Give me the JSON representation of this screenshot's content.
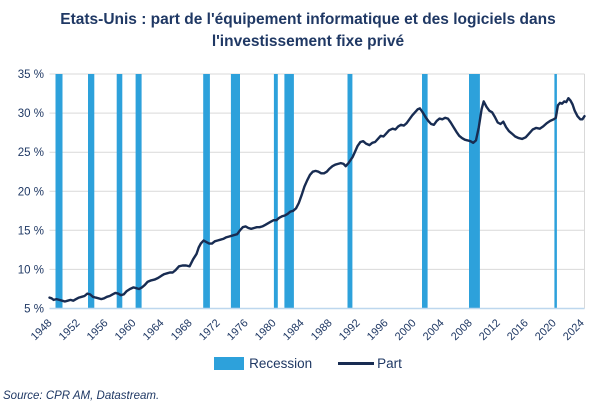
{
  "title": "Etats-Unis : part de l'équipement informatique et des logiciels dans l'investissement fixe privé",
  "legend": {
    "recession": "Recession",
    "part": "Part"
  },
  "source": "Source: CPR AM, Datastream.",
  "chart_data": {
    "type": "line",
    "title": "Etats-Unis : part de l'équipement informatique et des logiciels dans l'investissement fixe privé",
    "xlabel": "",
    "ylabel": "",
    "xlim": [
      1948,
      2024.4
    ],
    "ylim": [
      5,
      35
    ],
    "grid": "horizontal",
    "legend_position": "bottom",
    "xticks": [
      1948,
      1952,
      1956,
      1960,
      1964,
      1968,
      1972,
      1976,
      1980,
      1984,
      1988,
      1992,
      1996,
      2000,
      2004,
      2008,
      2012,
      2016,
      2020,
      2024
    ],
    "yticks": [
      5,
      10,
      15,
      20,
      25,
      30,
      35
    ],
    "ytick_labels": [
      "5 %",
      "10 %",
      "15 %",
      "20 %",
      "25 %",
      "30 %",
      "35 %"
    ],
    "colors": {
      "recession": "#2DA1DB",
      "part": "#182C52",
      "grid": "#D9D9D9",
      "baseline": "#BDD7EE",
      "text": "#1F3864"
    },
    "recessions": [
      [
        1948.85,
        1949.85
      ],
      [
        1953.5,
        1954.4
      ],
      [
        1957.6,
        1958.4
      ],
      [
        1960.3,
        1961.15
      ],
      [
        1969.95,
        1970.9
      ],
      [
        1973.9,
        1975.2
      ],
      [
        1980.05,
        1980.6
      ],
      [
        1981.55,
        1982.9
      ],
      [
        1990.55,
        1991.25
      ],
      [
        2001.2,
        2002.0
      ],
      [
        2007.9,
        2009.45
      ],
      [
        2020.1,
        2020.45
      ]
    ],
    "series": [
      {
        "name": "Part",
        "points": [
          [
            1948.0,
            6.4
          ],
          [
            1948.3,
            6.3
          ],
          [
            1948.6,
            6.1
          ],
          [
            1949.0,
            6.2
          ],
          [
            1949.4,
            6.1
          ],
          [
            1949.8,
            6.0
          ],
          [
            1950.2,
            5.9
          ],
          [
            1950.6,
            6.0
          ],
          [
            1951.0,
            6.1
          ],
          [
            1951.4,
            6.0
          ],
          [
            1951.8,
            6.2
          ],
          [
            1952.2,
            6.4
          ],
          [
            1952.6,
            6.5
          ],
          [
            1953.0,
            6.6
          ],
          [
            1953.4,
            6.9
          ],
          [
            1953.8,
            6.8
          ],
          [
            1954.2,
            6.5
          ],
          [
            1954.6,
            6.4
          ],
          [
            1955.0,
            6.3
          ],
          [
            1955.4,
            6.2
          ],
          [
            1955.8,
            6.3
          ],
          [
            1956.2,
            6.5
          ],
          [
            1956.6,
            6.6
          ],
          [
            1957.0,
            6.8
          ],
          [
            1957.4,
            7.0
          ],
          [
            1957.8,
            6.9
          ],
          [
            1958.2,
            6.7
          ],
          [
            1958.6,
            6.8
          ],
          [
            1959.0,
            7.2
          ],
          [
            1959.5,
            7.5
          ],
          [
            1960.0,
            7.7
          ],
          [
            1960.4,
            7.6
          ],
          [
            1960.8,
            7.5
          ],
          [
            1961.2,
            7.7
          ],
          [
            1961.6,
            8.0
          ],
          [
            1962.0,
            8.4
          ],
          [
            1962.5,
            8.6
          ],
          [
            1963.0,
            8.7
          ],
          [
            1963.5,
            8.9
          ],
          [
            1964.0,
            9.2
          ],
          [
            1964.4,
            9.4
          ],
          [
            1964.8,
            9.5
          ],
          [
            1965.2,
            9.6
          ],
          [
            1965.6,
            9.6
          ],
          [
            1966.0,
            9.9
          ],
          [
            1966.5,
            10.4
          ],
          [
            1967.0,
            10.5
          ],
          [
            1967.5,
            10.5
          ],
          [
            1968.0,
            10.4
          ],
          [
            1968.5,
            11.3
          ],
          [
            1969.0,
            12.0
          ],
          [
            1969.3,
            12.8
          ],
          [
            1969.6,
            13.3
          ],
          [
            1970.0,
            13.7
          ],
          [
            1970.4,
            13.5
          ],
          [
            1970.8,
            13.3
          ],
          [
            1971.2,
            13.3
          ],
          [
            1971.6,
            13.6
          ],
          [
            1972.0,
            13.7
          ],
          [
            1972.4,
            13.8
          ],
          [
            1972.8,
            13.9
          ],
          [
            1973.2,
            14.1
          ],
          [
            1973.6,
            14.2
          ],
          [
            1974.0,
            14.3
          ],
          [
            1974.4,
            14.4
          ],
          [
            1974.8,
            14.5
          ],
          [
            1975.2,
            15.0
          ],
          [
            1975.6,
            15.4
          ],
          [
            1976.0,
            15.5
          ],
          [
            1976.4,
            15.3
          ],
          [
            1976.8,
            15.2
          ],
          [
            1977.2,
            15.3
          ],
          [
            1977.6,
            15.4
          ],
          [
            1978.0,
            15.4
          ],
          [
            1978.4,
            15.5
          ],
          [
            1978.8,
            15.7
          ],
          [
            1979.2,
            15.9
          ],
          [
            1979.6,
            16.1
          ],
          [
            1980.0,
            16.3
          ],
          [
            1980.4,
            16.3
          ],
          [
            1980.8,
            16.6
          ],
          [
            1981.2,
            16.8
          ],
          [
            1981.6,
            16.9
          ],
          [
            1982.0,
            17.1
          ],
          [
            1982.4,
            17.4
          ],
          [
            1982.8,
            17.5
          ],
          [
            1983.2,
            17.8
          ],
          [
            1983.6,
            18.5
          ],
          [
            1984.0,
            19.5
          ],
          [
            1984.4,
            20.6
          ],
          [
            1984.8,
            21.4
          ],
          [
            1985.2,
            22.1
          ],
          [
            1985.6,
            22.5
          ],
          [
            1986.0,
            22.6
          ],
          [
            1986.4,
            22.5
          ],
          [
            1986.8,
            22.3
          ],
          [
            1987.2,
            22.3
          ],
          [
            1987.6,
            22.5
          ],
          [
            1988.0,
            22.9
          ],
          [
            1988.4,
            23.2
          ],
          [
            1988.8,
            23.4
          ],
          [
            1989.2,
            23.5
          ],
          [
            1989.6,
            23.6
          ],
          [
            1990.0,
            23.5
          ],
          [
            1990.3,
            23.2
          ],
          [
            1990.7,
            23.6
          ],
          [
            1991.0,
            24.0
          ],
          [
            1991.3,
            24.4
          ],
          [
            1991.6,
            25.0
          ],
          [
            1992.0,
            25.8
          ],
          [
            1992.4,
            26.3
          ],
          [
            1992.8,
            26.4
          ],
          [
            1993.2,
            26.1
          ],
          [
            1993.7,
            25.9
          ],
          [
            1994.1,
            26.2
          ],
          [
            1994.5,
            26.3
          ],
          [
            1994.9,
            26.7
          ],
          [
            1995.3,
            27.1
          ],
          [
            1995.7,
            27.0
          ],
          [
            1996.1,
            27.4
          ],
          [
            1996.5,
            27.8
          ],
          [
            1997.0,
            28.0
          ],
          [
            1997.4,
            27.9
          ],
          [
            1997.8,
            28.3
          ],
          [
            1998.2,
            28.5
          ],
          [
            1998.6,
            28.4
          ],
          [
            1999.0,
            28.7
          ],
          [
            1999.4,
            29.2
          ],
          [
            1999.8,
            29.7
          ],
          [
            2000.2,
            30.1
          ],
          [
            2000.6,
            30.5
          ],
          [
            2000.9,
            30.6
          ],
          [
            2001.3,
            30.1
          ],
          [
            2001.7,
            29.5
          ],
          [
            2002.1,
            29.0
          ],
          [
            2002.5,
            28.6
          ],
          [
            2002.9,
            28.5
          ],
          [
            2003.3,
            29.0
          ],
          [
            2003.7,
            29.3
          ],
          [
            2004.1,
            29.2
          ],
          [
            2004.5,
            29.4
          ],
          [
            2004.9,
            29.3
          ],
          [
            2005.3,
            28.8
          ],
          [
            2005.7,
            28.2
          ],
          [
            2006.1,
            27.6
          ],
          [
            2006.5,
            27.1
          ],
          [
            2006.9,
            26.8
          ],
          [
            2007.3,
            26.6
          ],
          [
            2007.7,
            26.5
          ],
          [
            2008.1,
            26.4
          ],
          [
            2008.5,
            26.2
          ],
          [
            2008.9,
            26.5
          ],
          [
            2009.3,
            28.2
          ],
          [
            2009.7,
            30.5
          ],
          [
            2010.0,
            31.5
          ],
          [
            2010.4,
            30.8
          ],
          [
            2010.8,
            30.3
          ],
          [
            2011.2,
            30.1
          ],
          [
            2011.6,
            29.5
          ],
          [
            2012.0,
            28.8
          ],
          [
            2012.4,
            28.6
          ],
          [
            2012.8,
            28.9
          ],
          [
            2013.2,
            28.2
          ],
          [
            2013.6,
            27.7
          ],
          [
            2014.0,
            27.4
          ],
          [
            2014.5,
            27.0
          ],
          [
            2015.0,
            26.8
          ],
          [
            2015.5,
            26.7
          ],
          [
            2016.0,
            26.9
          ],
          [
            2016.5,
            27.4
          ],
          [
            2017.0,
            27.9
          ],
          [
            2017.5,
            28.1
          ],
          [
            2018.0,
            28.0
          ],
          [
            2018.5,
            28.3
          ],
          [
            2019.0,
            28.7
          ],
          [
            2019.5,
            29.0
          ],
          [
            2020.0,
            29.2
          ],
          [
            2020.3,
            29.4
          ],
          [
            2020.6,
            31.0
          ],
          [
            2020.9,
            31.3
          ],
          [
            2021.2,
            31.2
          ],
          [
            2021.5,
            31.5
          ],
          [
            2021.8,
            31.4
          ],
          [
            2022.1,
            31.9
          ],
          [
            2022.4,
            31.6
          ],
          [
            2022.7,
            31.1
          ],
          [
            2023.0,
            30.3
          ],
          [
            2023.4,
            29.6
          ],
          [
            2023.8,
            29.2
          ],
          [
            2024.1,
            29.2
          ],
          [
            2024.4,
            29.6
          ]
        ]
      }
    ]
  }
}
